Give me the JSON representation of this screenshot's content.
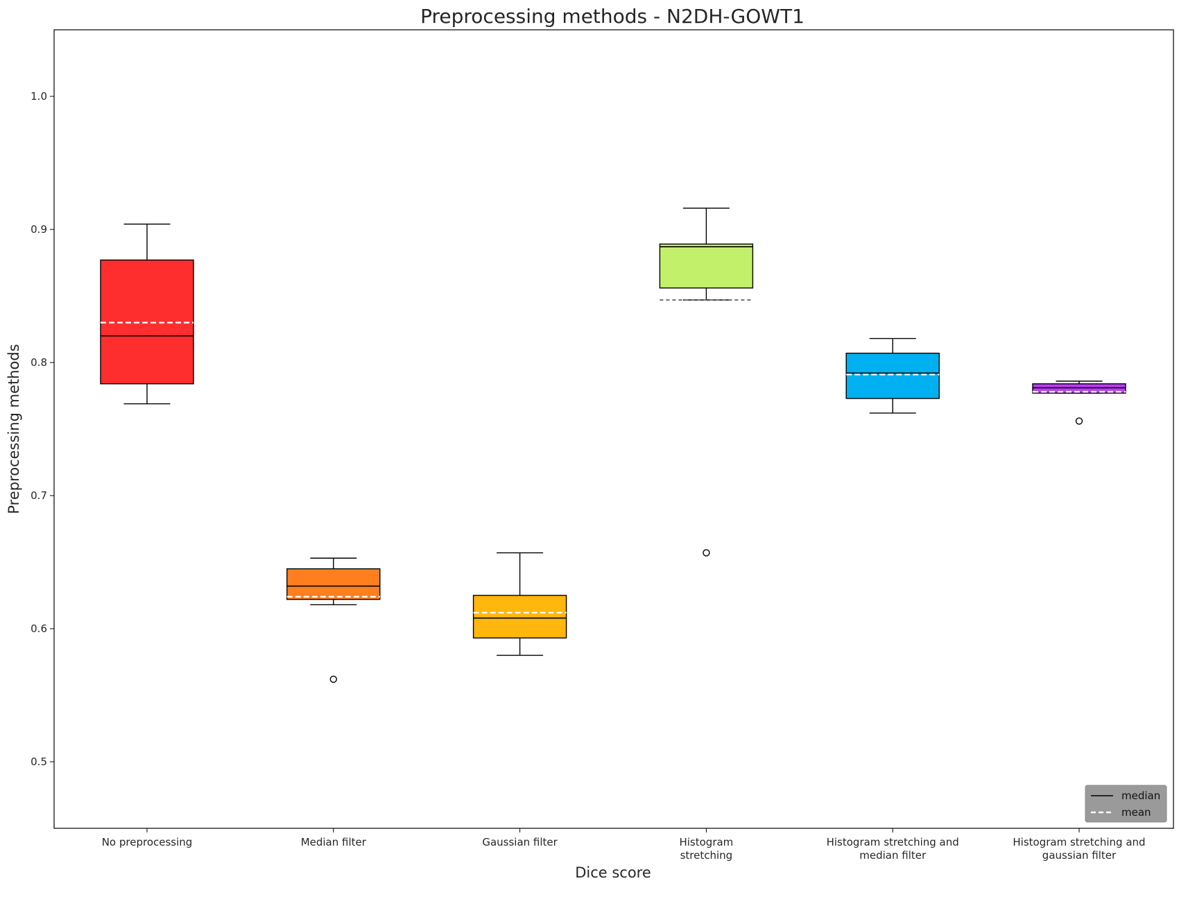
{
  "chart_data": {
    "type": "boxplot",
    "title": "Preprocessing methods - N2DH-GOWT1",
    "xlabel": "Dice score",
    "ylabel": "Preprocessing methods",
    "ylim": [
      0.45,
      1.05
    ],
    "yticks": [
      "0.5",
      "0.6",
      "0.7",
      "0.8",
      "0.9",
      "1.0"
    ],
    "grid": false,
    "legend": {
      "placement": "bottom-right",
      "entries": [
        {
          "label": "median",
          "style": "solid",
          "color": "#000000"
        },
        {
          "label": "mean",
          "style": "dashed",
          "color": "#ffffff"
        }
      ]
    },
    "boxes": [
      {
        "label_lines": [
          "No preprocessing"
        ],
        "color": "#ff2e2e",
        "whisker_low": 0.769,
        "q1": 0.784,
        "median": 0.82,
        "mean": 0.83,
        "q3": 0.877,
        "whisker_high": 0.904,
        "outliers": []
      },
      {
        "label_lines": [
          "Median filter"
        ],
        "color": "#ff7f1f",
        "whisker_low": 0.618,
        "q1": 0.622,
        "median": 0.632,
        "mean": 0.624,
        "q3": 0.645,
        "whisker_high": 0.653,
        "outliers": [
          0.562
        ]
      },
      {
        "label_lines": [
          "Gaussian filter"
        ],
        "color": "#ffb60d",
        "whisker_low": 0.58,
        "q1": 0.593,
        "median": 0.608,
        "mean": 0.612,
        "q3": 0.625,
        "whisker_high": 0.657,
        "outliers": []
      },
      {
        "label_lines": [
          "Histogram",
          "stretching"
        ],
        "color": "#c3f06b",
        "whisker_low": 0.847,
        "q1": 0.856,
        "median": 0.887,
        "mean": 0.847,
        "q3": 0.889,
        "whisker_high": 0.916,
        "outliers": [
          0.657
        ]
      },
      {
        "label_lines": [
          "Histogram stretching and",
          "median filter"
        ],
        "color": "#00b0f0",
        "whisker_low": 0.762,
        "q1": 0.773,
        "median": 0.792,
        "mean": 0.791,
        "q3": 0.807,
        "whisker_high": 0.818,
        "outliers": []
      },
      {
        "label_lines": [
          "Histogram stretching and",
          "gaussian filter"
        ],
        "color": "#bd3df5",
        "whisker_low": 0.777,
        "q1": 0.777,
        "median": 0.781,
        "mean": 0.778,
        "q3": 0.784,
        "whisker_high": 0.786,
        "outliers": [
          0.756
        ]
      }
    ]
  }
}
